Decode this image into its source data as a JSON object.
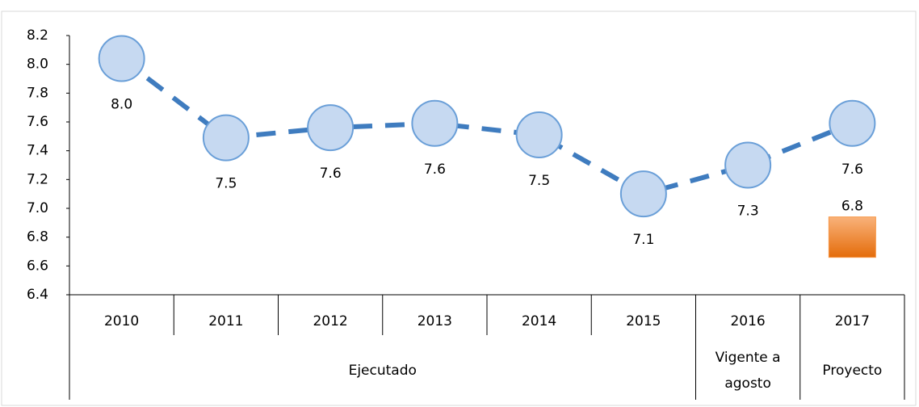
{
  "chart_data": {
    "type": "line",
    "categories": [
      "2010",
      "2011",
      "2012",
      "2013",
      "2014",
      "2015",
      "2016",
      "2017"
    ],
    "groups": [
      {
        "label": "Ejecutado",
        "count": 6
      },
      {
        "label": "Vigente a agosto",
        "count": 1
      },
      {
        "label": "Proyecto",
        "count": 1
      }
    ],
    "series": [
      {
        "color": "#3f7cbf",
        "marker_fill": "#c6d9f1",
        "marker_stroke": "#6a9fd8",
        "values": [
          8.04,
          7.49,
          7.56,
          7.59,
          7.51,
          7.1,
          7.3,
          7.59
        ],
        "value_labels": [
          "8.0",
          "7.5",
          "7.6",
          "7.6",
          "7.5",
          "7.1",
          "7.3",
          "7.6"
        ]
      },
      {
        "color": "#f79646",
        "marker": "square",
        "values": [
          null,
          null,
          null,
          null,
          null,
          null,
          null,
          6.8
        ],
        "value_labels": [
          null,
          null,
          null,
          null,
          null,
          null,
          null,
          "6.8"
        ]
      }
    ],
    "ylim": [
      6.4,
      8.2
    ],
    "yticks": [
      {
        "value": 6.4,
        "label": "6.4"
      },
      6.6,
      6.8,
      {
        "value": 7,
        "label": "7.0"
      },
      7.2,
      7.4,
      7.6,
      7.8,
      {
        "value": 8,
        "label": "8.0"
      },
      8.2
    ]
  }
}
